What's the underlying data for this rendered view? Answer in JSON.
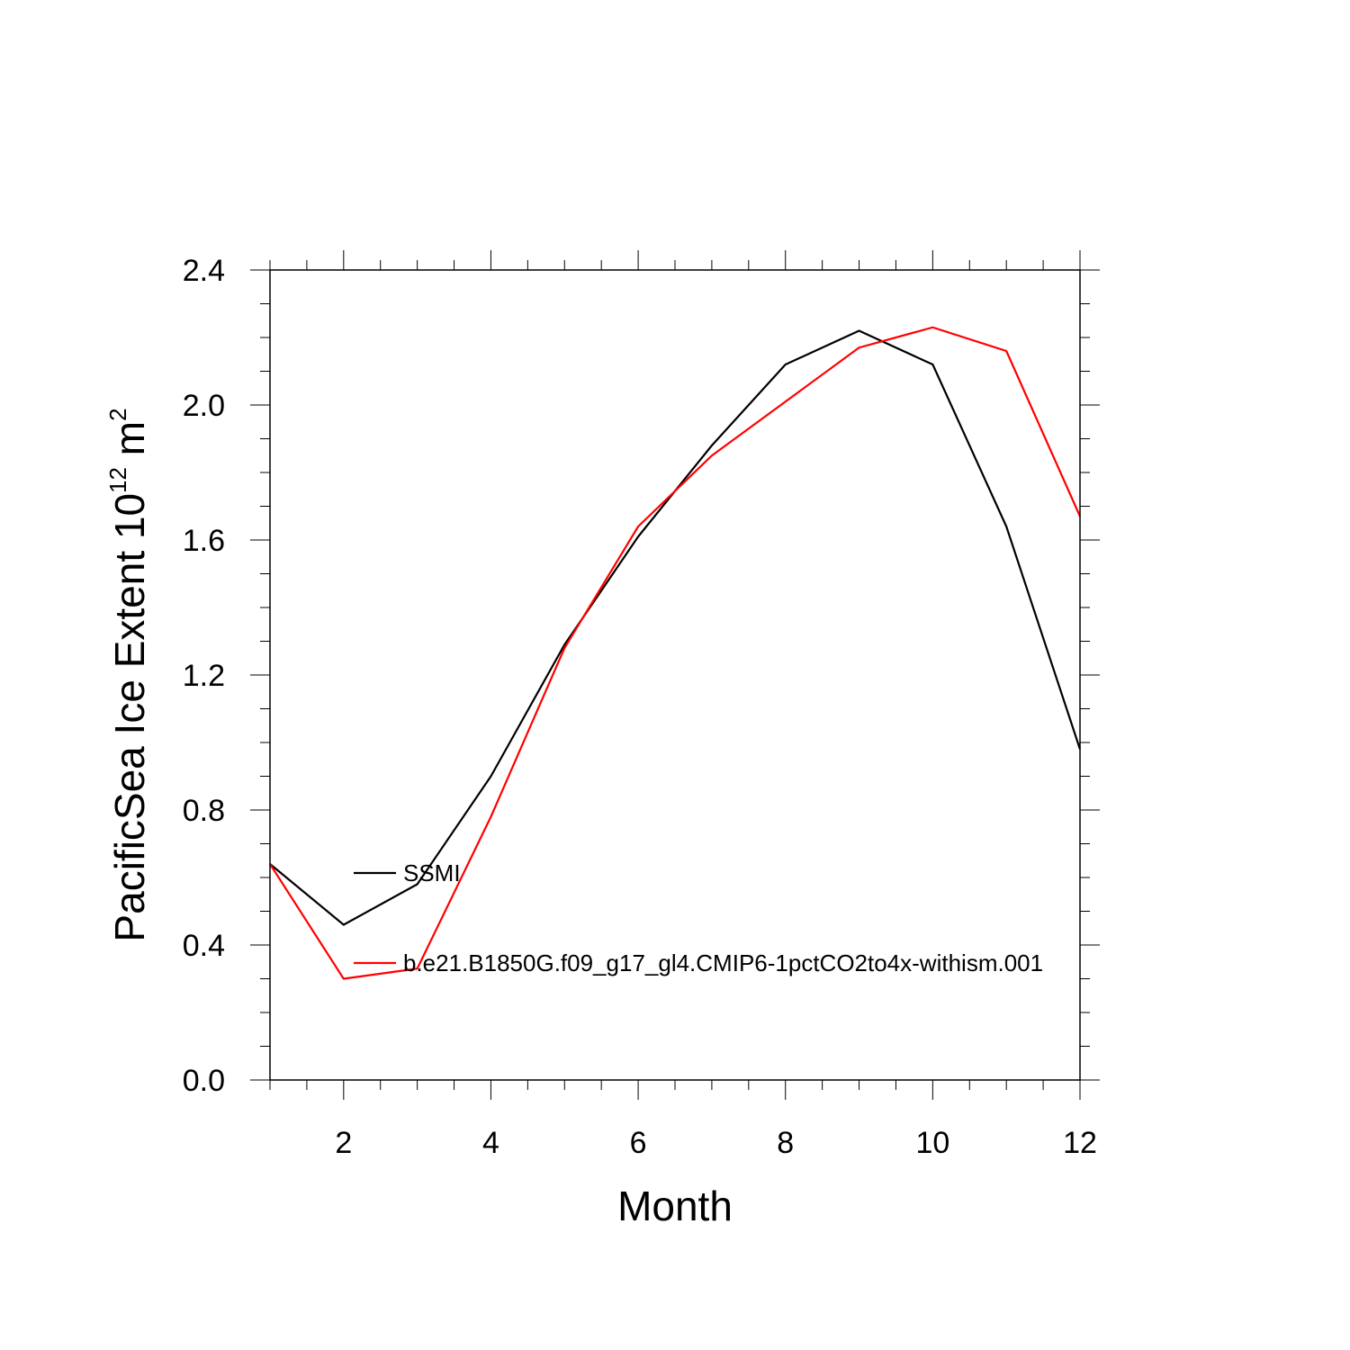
{
  "chart_data": {
    "type": "line",
    "title": "",
    "xlabel": "Month",
    "ylabel": {
      "text": "PacificSea Ice Extent 10",
      "exponent": "12",
      "unit": " m",
      "unit_exponent": "2"
    },
    "xlim": [
      1,
      12
    ],
    "ylim": [
      0,
      2.4
    ],
    "x_ticks": [
      2,
      4,
      6,
      8,
      10,
      12
    ],
    "x_tick_labels": [
      "2",
      "4",
      "6",
      "8",
      "10",
      "12"
    ],
    "y_ticks": [
      0,
      0.4,
      0.8,
      1.2,
      1.6,
      2.0,
      2.4
    ],
    "y_tick_labels": [
      "0.0",
      "0.4",
      "0.8",
      "1.2",
      "1.6",
      "2.0",
      "2.4"
    ],
    "grid": false,
    "legend_placement": "inside-left",
    "x": [
      1,
      2,
      3,
      4,
      5,
      6,
      7,
      8,
      9,
      10,
      11,
      12
    ],
    "series": [
      {
        "name": "SSMI",
        "color": "#000000",
        "values": [
          0.64,
          0.46,
          0.58,
          0.9,
          1.29,
          1.61,
          1.88,
          2.12,
          2.22,
          2.12,
          1.64,
          0.98
        ]
      },
      {
        "name": "b.e21.B1850G.f09_g17_gl4.CMIP6-1pctCO2to4x-withism.001",
        "color": "#ff0000",
        "values": [
          0.64,
          0.3,
          0.33,
          0.78,
          1.28,
          1.64,
          1.85,
          2.01,
          2.17,
          2.23,
          2.16,
          1.67
        ]
      }
    ]
  }
}
